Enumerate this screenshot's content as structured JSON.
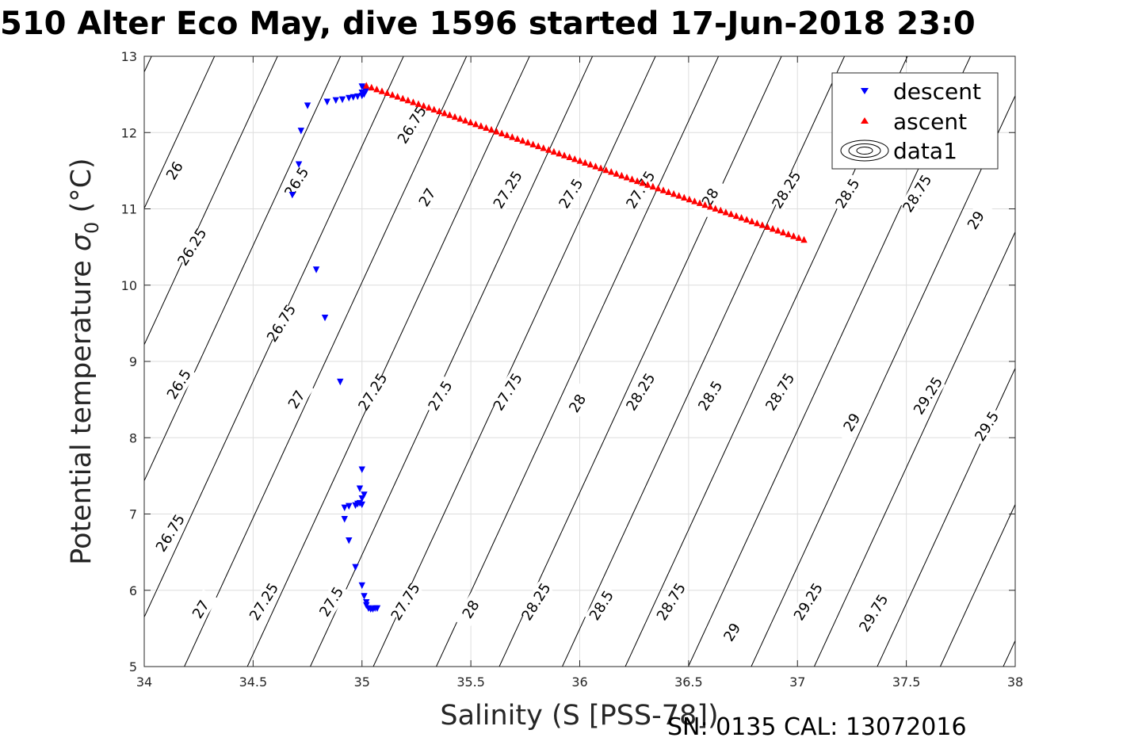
{
  "title": "510 Alter Eco May, dive 1596 started 17-Jun-2018 23:0",
  "caption": "SN: 0135  CAL: 13072016",
  "chart_data": {
    "type": "scatter",
    "xlabel": "Salinity (S [PSS-78])",
    "ylabel_main": "Potential temperature ",
    "ylabel_sym": "σ",
    "ylabel_sub": "0",
    "ylabel_unit": " (°C)",
    "xlim": [
      34,
      38
    ],
    "ylim": [
      5,
      13
    ],
    "xticks": [
      "34",
      "34.5",
      "35",
      "35.5",
      "36",
      "36.5",
      "37",
      "37.5",
      "38"
    ],
    "yticks": [
      "5",
      "6",
      "7",
      "8",
      "9",
      "10",
      "11",
      "12",
      "13"
    ],
    "grid": true,
    "legend_position": "top-right",
    "legend": [
      "descent",
      "ascent",
      "data1"
    ],
    "contour_labels": [
      {
        "text": "26",
        "s": 34.14,
        "t": 11.5
      },
      {
        "text": "26.25",
        "s": 34.22,
        "t": 10.5
      },
      {
        "text": "26.5",
        "s": 34.16,
        "t": 8.7
      },
      {
        "text": "26.75",
        "s": 34.12,
        "t": 6.75
      },
      {
        "text": "27",
        "s": 34.26,
        "t": 5.75
      },
      {
        "text": "26.5",
        "s": 34.7,
        "t": 11.35
      },
      {
        "text": "26.75",
        "s": 34.63,
        "t": 9.5
      },
      {
        "text": "27",
        "s": 34.7,
        "t": 8.5
      },
      {
        "text": "27.25",
        "s": 34.55,
        "t": 5.85
      },
      {
        "text": "26.75",
        "s": 35.23,
        "t": 12.1
      },
      {
        "text": "27",
        "s": 35.3,
        "t": 11.15
      },
      {
        "text": "27.25",
        "s": 35.05,
        "t": 8.6
      },
      {
        "text": "27.5",
        "s": 34.86,
        "t": 5.85
      },
      {
        "text": "27.25",
        "s": 35.67,
        "t": 11.25
      },
      {
        "text": "27.5",
        "s": 35.36,
        "t": 8.55
      },
      {
        "text": "27.75",
        "s": 35.2,
        "t": 5.85
      },
      {
        "text": "27.5",
        "s": 35.96,
        "t": 11.2
      },
      {
        "text": "27.75",
        "s": 35.67,
        "t": 8.6
      },
      {
        "text": "28",
        "s": 35.5,
        "t": 5.75
      },
      {
        "text": "27.75",
        "s": 36.28,
        "t": 11.25
      },
      {
        "text": "28",
        "s": 35.99,
        "t": 8.45
      },
      {
        "text": "28.25",
        "s": 35.8,
        "t": 5.85
      },
      {
        "text": "28",
        "s": 36.6,
        "t": 11.15
      },
      {
        "text": "28.25",
        "s": 36.28,
        "t": 8.6
      },
      {
        "text": "28.5",
        "s": 36.1,
        "t": 5.8
      },
      {
        "text": "28.25",
        "s": 36.95,
        "t": 11.25
      },
      {
        "text": "28.5",
        "s": 36.6,
        "t": 8.55
      },
      {
        "text": "28.75",
        "s": 36.42,
        "t": 5.85
      },
      {
        "text": "28.5",
        "s": 37.23,
        "t": 11.2
      },
      {
        "text": "28.75",
        "s": 36.92,
        "t": 8.6
      },
      {
        "text": "29",
        "s": 36.7,
        "t": 5.45
      },
      {
        "text": "28.75",
        "s": 37.55,
        "t": 11.2
      },
      {
        "text": "29",
        "s": 37.25,
        "t": 8.2
      },
      {
        "text": "29.25",
        "s": 37.05,
        "t": 5.85
      },
      {
        "text": "29",
        "s": 37.82,
        "t": 10.85
      },
      {
        "text": "29.25",
        "s": 37.6,
        "t": 8.55
      },
      {
        "text": "29.75",
        "s": 37.35,
        "t": 5.7
      },
      {
        "text": "29.5",
        "s": 37.87,
        "t": 8.15
      }
    ],
    "series": [
      {
        "name": "descent",
        "marker": "triangle-down",
        "color": "#0000ff",
        "points": [
          [
            35.0,
            12.6
          ],
          [
            35.01,
            12.58
          ],
          [
            35.02,
            12.55
          ],
          [
            35.0,
            12.52
          ],
          [
            35.01,
            12.5
          ],
          [
            35.0,
            12.48
          ],
          [
            34.98,
            12.47
          ],
          [
            34.96,
            12.46
          ],
          [
            34.94,
            12.45
          ],
          [
            34.91,
            12.43
          ],
          [
            34.88,
            12.42
          ],
          [
            34.84,
            12.4
          ],
          [
            34.75,
            12.35
          ],
          [
            34.72,
            12.02
          ],
          [
            34.71,
            11.58
          ],
          [
            34.68,
            11.18
          ],
          [
            34.79,
            10.2
          ],
          [
            34.83,
            9.57
          ],
          [
            34.9,
            8.73
          ],
          [
            35.0,
            7.58
          ],
          [
            34.99,
            7.33
          ],
          [
            35.01,
            7.25
          ],
          [
            35.0,
            7.2
          ],
          [
            34.99,
            7.14
          ],
          [
            35.0,
            7.12
          ],
          [
            34.98,
            7.13
          ],
          [
            34.97,
            7.11
          ],
          [
            34.94,
            7.1
          ],
          [
            34.92,
            7.08
          ],
          [
            34.92,
            6.93
          ],
          [
            34.94,
            6.65
          ],
          [
            34.97,
            6.3
          ],
          [
            35.0,
            6.06
          ],
          [
            35.01,
            5.92
          ],
          [
            35.02,
            5.84
          ],
          [
            35.02,
            5.8
          ],
          [
            35.03,
            5.76
          ],
          [
            35.04,
            5.75
          ],
          [
            35.05,
            5.75
          ],
          [
            35.06,
            5.76
          ],
          [
            35.07,
            5.76
          ]
        ]
      },
      {
        "name": "ascent",
        "marker": "triangle-up",
        "color": "#ff0000",
        "start": [
          35.02,
          12.62
        ],
        "end": [
          37.03,
          10.6
        ],
        "count": 85
      }
    ]
  }
}
